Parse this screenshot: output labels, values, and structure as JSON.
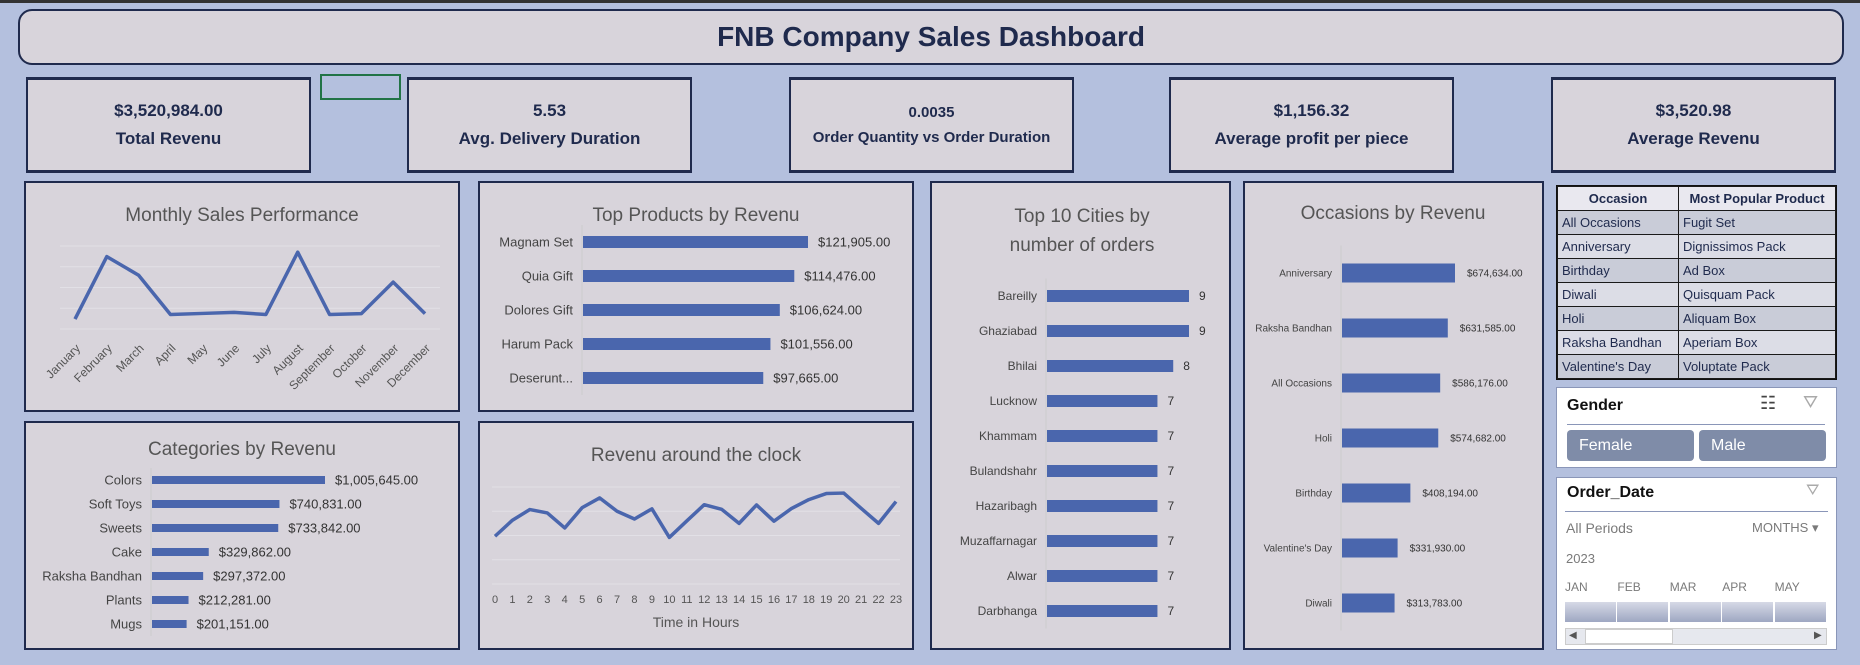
{
  "header": {
    "title": "FNB Company Sales Dashboard"
  },
  "kpis": [
    {
      "value": "$3,520,984.00",
      "label": "Total Revenu"
    },
    {
      "value": "5.53",
      "label": "Avg. Delivery Duration"
    },
    {
      "value": "0.0035",
      "label": "Order Quantity vs Order Duration"
    },
    {
      "value": "$1,156.32",
      "label": "Average profit per piece"
    },
    {
      "value": "$3,520.98",
      "label": "Average Revenu"
    }
  ],
  "chart_data": [
    {
      "type": "line",
      "title": "Monthly Sales Performance",
      "categories": [
        "January",
        "February",
        "March",
        "April",
        "May",
        "June",
        "July",
        "August",
        "September",
        "October",
        "November",
        "December"
      ],
      "values": [
        0.48,
        3.49,
        2.59,
        0.7,
        0.75,
        0.8,
        0.7,
        3.7,
        0.7,
        0.74,
        2.26,
        0.74
      ],
      "ylim": [
        0,
        4
      ],
      "grid": true,
      "note_units": "relative (no y-axis printed)"
    },
    {
      "type": "bar",
      "orientation": "horizontal",
      "title": "Top Products by Revenu",
      "categories": [
        "Magnam Set",
        "Quia Gift",
        "Dolores Gift",
        "Harum Pack",
        "Deserunt..."
      ],
      "values": [
        121905,
        114476,
        106624,
        101556,
        97665
      ],
      "labels": [
        "$121,905.00",
        "$114,476.00",
        "$106,624.00",
        "$101,556.00",
        "$97,665.00"
      ]
    },
    {
      "type": "bar",
      "orientation": "horizontal",
      "title": "Top 10 Cities by number of orders",
      "categories": [
        "Bareilly",
        "Ghaziabad",
        "Bhilai",
        "Lucknow",
        "Khammam",
        "Bulandshahr",
        "Hazaribagh",
        "Muzaffarnagar",
        "Alwar",
        "Darbhanga"
      ],
      "values": [
        9,
        9,
        8,
        7,
        7,
        7,
        7,
        7,
        7,
        7
      ],
      "labels": [
        "9",
        "9",
        "8",
        "7",
        "7",
        "7",
        "7",
        "7",
        "7",
        "7"
      ]
    },
    {
      "type": "bar",
      "orientation": "horizontal",
      "title": "Occasions by Revenu",
      "categories": [
        "Anniversary",
        "Raksha Bandhan",
        "All Occasions",
        "Holi",
        "Birthday",
        "Valentine's Day",
        "Diwali"
      ],
      "values": [
        674634,
        631585,
        586176,
        574682,
        408194,
        331930,
        313783
      ],
      "labels": [
        "$674,634.00",
        "$631,585.00",
        "$586,176.00",
        "$574,682.00",
        "$408,194.00",
        "$331,930.00",
        "$313,783.00"
      ]
    },
    {
      "type": "bar",
      "orientation": "horizontal",
      "title": "Categories by Revenu",
      "categories": [
        "Colors",
        "Soft Toys",
        "Sweets",
        "Cake",
        "Raksha Bandhan",
        "Plants",
        "Mugs"
      ],
      "values": [
        1005645,
        740831,
        733842,
        329862,
        297372,
        212281,
        201151
      ],
      "labels": [
        "$1,005,645.00",
        "$740,831.00",
        "$733,842.00",
        "$329,862.00",
        "$297,372.00",
        "$212,281.00",
        "$201,151.00"
      ]
    },
    {
      "type": "line",
      "title": "Revenu around the clock",
      "xlabel": "Time in Hours",
      "categories": [
        "0",
        "1",
        "2",
        "3",
        "4",
        "5",
        "6",
        "7",
        "8",
        "9",
        "10",
        "11",
        "12",
        "13",
        "14",
        "15",
        "16",
        "17",
        "18",
        "19",
        "20",
        "21",
        "22",
        "23"
      ],
      "values": [
        1.97,
        2.63,
        3.07,
        2.93,
        2.31,
        3.15,
        3.55,
        3.0,
        2.68,
        3.1,
        1.92,
        2.6,
        3.27,
        3.08,
        2.5,
        3.26,
        2.59,
        3.11,
        3.48,
        3.73,
        3.75,
        3.12,
        2.5,
        3.4
      ],
      "ylim": [
        0,
        4
      ],
      "grid": true
    }
  ],
  "occasion_table": {
    "headers": [
      "Occasion",
      "Most Popular Product"
    ],
    "rows": [
      [
        "All Occasions",
        "Fugit Set"
      ],
      [
        "Anniversary",
        "Dignissimos Pack"
      ],
      [
        "Birthday",
        "Ad Box"
      ],
      [
        "Diwali",
        "Quisquam Pack"
      ],
      [
        "Holi",
        "Aliquam Box"
      ],
      [
        "Raksha Bandhan",
        "Aperiam Box"
      ],
      [
        "Valentine's Day",
        "Voluptate Pack"
      ]
    ]
  },
  "gender_slicer": {
    "title": "Gender",
    "options": [
      "Female",
      "Male"
    ]
  },
  "date_slicer": {
    "title": "Order_Date",
    "period": "All Periods",
    "level": "MONTHS",
    "year": "2023",
    "months": [
      "JAN",
      "FEB",
      "MAR",
      "APR",
      "MAY"
    ]
  },
  "colors": {
    "bar": "#4a66ad",
    "panel": "#d8d4db",
    "background": "#b4c0de",
    "border": "#1f2a4d"
  }
}
